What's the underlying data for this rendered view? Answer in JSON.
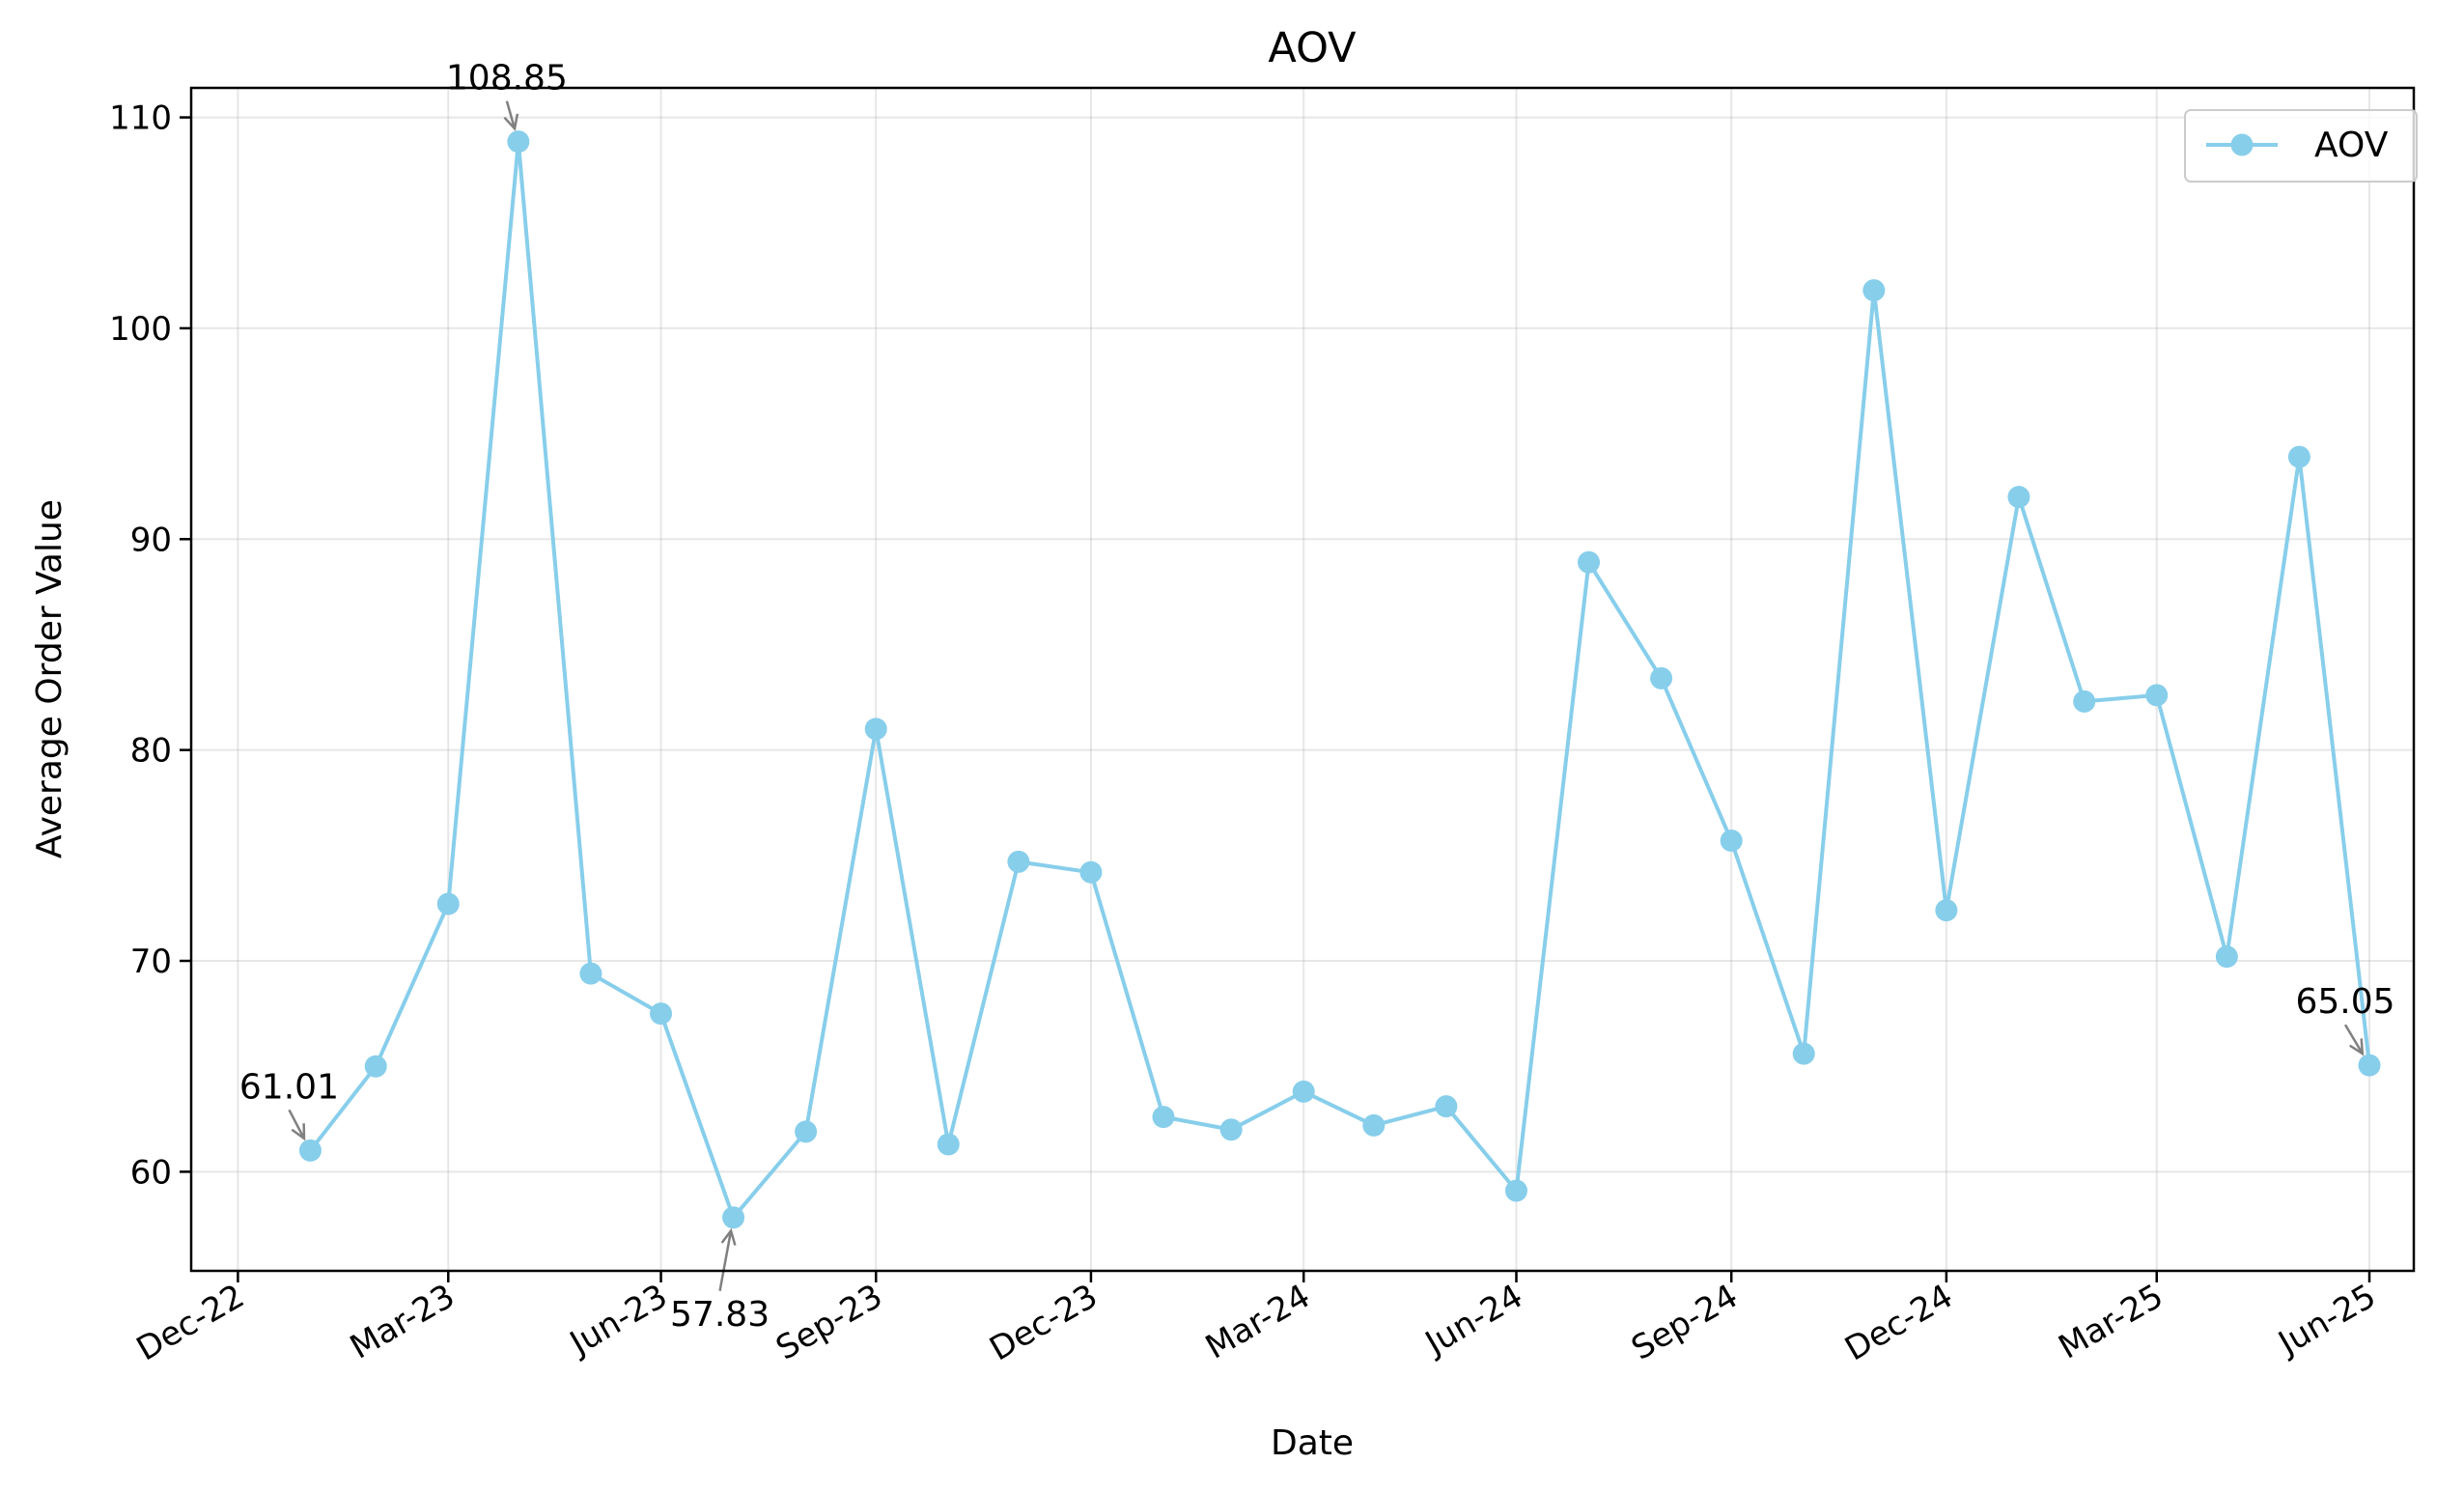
{
  "chart_data": {
    "type": "line",
    "title": "AOV",
    "xlabel": "Date",
    "ylabel": "Average Order Value",
    "x": [
      "2023-01-31",
      "2023-02-28",
      "2023-03-31",
      "2023-04-30",
      "2023-05-31",
      "2023-06-30",
      "2023-07-31",
      "2023-08-31",
      "2023-09-30",
      "2023-10-31",
      "2023-11-30",
      "2023-12-31",
      "2024-01-31",
      "2024-02-29",
      "2024-03-31",
      "2024-04-30",
      "2024-05-31",
      "2024-06-30",
      "2024-07-31",
      "2024-08-31",
      "2024-09-30",
      "2024-10-31",
      "2024-11-30",
      "2024-12-31",
      "2025-01-31",
      "2025-02-28",
      "2025-03-31",
      "2025-04-30",
      "2025-05-31",
      "2025-06-30"
    ],
    "series": [
      {
        "name": "AOV",
        "color": "#87CEEB",
        "values": [
          61.01,
          65.0,
          72.7,
          108.85,
          69.4,
          67.5,
          57.83,
          61.9,
          81.0,
          61.3,
          74.7,
          74.2,
          62.6,
          62.0,
          63.8,
          62.2,
          63.1,
          59.1,
          88.9,
          83.4,
          75.7,
          65.6,
          101.8,
          72.4,
          92.0,
          82.3,
          82.6,
          70.2,
          93.9,
          65.05
        ]
      }
    ],
    "xticks": [
      {
        "date": "2022-12-31",
        "label": "Dec-22"
      },
      {
        "date": "2023-03-31",
        "label": "Mar-23"
      },
      {
        "date": "2023-06-30",
        "label": "Jun-23"
      },
      {
        "date": "2023-09-30",
        "label": "Sep-23"
      },
      {
        "date": "2023-12-31",
        "label": "Dec-23"
      },
      {
        "date": "2024-03-31",
        "label": "Mar-24"
      },
      {
        "date": "2024-06-30",
        "label": "Jun-24"
      },
      {
        "date": "2024-09-30",
        "label": "Sep-24"
      },
      {
        "date": "2024-12-31",
        "label": "Dec-24"
      },
      {
        "date": "2025-03-31",
        "label": "Mar-25"
      },
      {
        "date": "2025-06-30",
        "label": "Jun-25"
      }
    ],
    "yticks": [
      60,
      70,
      80,
      90,
      100,
      110
    ],
    "xlim": [
      "2022-12-11",
      "2025-07-19"
    ],
    "ylim": [
      55.3,
      111.4
    ],
    "grid": true,
    "legend": "top-right",
    "annotations": [
      {
        "text": "61.01",
        "index": 0
      },
      {
        "text": "108.85",
        "index": 3
      },
      {
        "text": "57.83",
        "index": 6
      },
      {
        "text": "65.05",
        "index": 29
      }
    ]
  }
}
